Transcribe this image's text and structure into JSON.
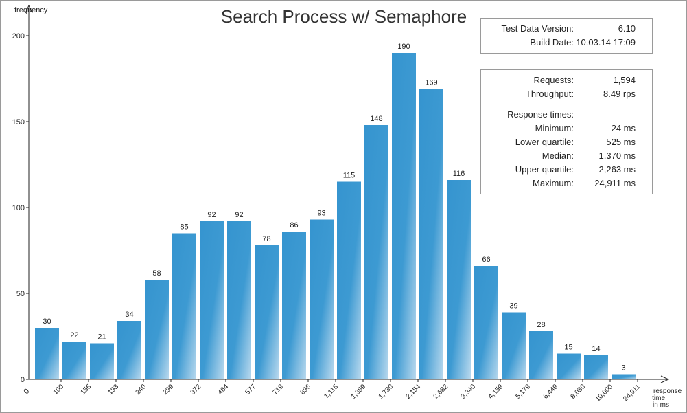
{
  "chart_data": {
    "type": "bar",
    "title": "Search Process w/ Semaphore",
    "ylabel": "frequency",
    "xlabel": [
      "response",
      "time",
      "in ms"
    ],
    "ylim": [
      0,
      200
    ],
    "yticks": [
      0,
      50,
      100,
      150,
      200
    ],
    "x_origin_label": "0",
    "categories": [
      "100",
      "155",
      "193",
      "240",
      "299",
      "372",
      "464",
      "577",
      "719",
      "896",
      "1,115",
      "1,389",
      "1,730",
      "2,154",
      "2,682",
      "3,340",
      "4,159",
      "5,179",
      "6,449",
      "8,030",
      "10,000",
      "24,911"
    ],
    "values": [
      30,
      22,
      21,
      34,
      58,
      85,
      92,
      92,
      78,
      86,
      93,
      115,
      148,
      190,
      169,
      116,
      66,
      39,
      28,
      15,
      14,
      3
    ],
    "bar_color": "#3594cf",
    "bar_color_light": "#b9d9ee"
  },
  "info": {
    "version_label": "Test Data Version:",
    "version_value": "6.10",
    "build_label": "Build Date:",
    "build_value": "10.03.14 17:09"
  },
  "stats": {
    "requests_label": "Requests:",
    "requests_value": "1,594",
    "throughput_label": "Throughput:",
    "throughput_value": "8.49 rps",
    "response_times_label": "Response times:",
    "minimum_label": "Minimum:",
    "minimum_value": "24 ms",
    "lower_quartile_label": "Lower quartile:",
    "lower_quartile_value": "525 ms",
    "median_label": "Median:",
    "median_value": "1,370 ms",
    "upper_quartile_label": "Upper quartile:",
    "upper_quartile_value": "2,263 ms",
    "maximum_label": "Maximum:",
    "maximum_value": "24,911 ms"
  }
}
